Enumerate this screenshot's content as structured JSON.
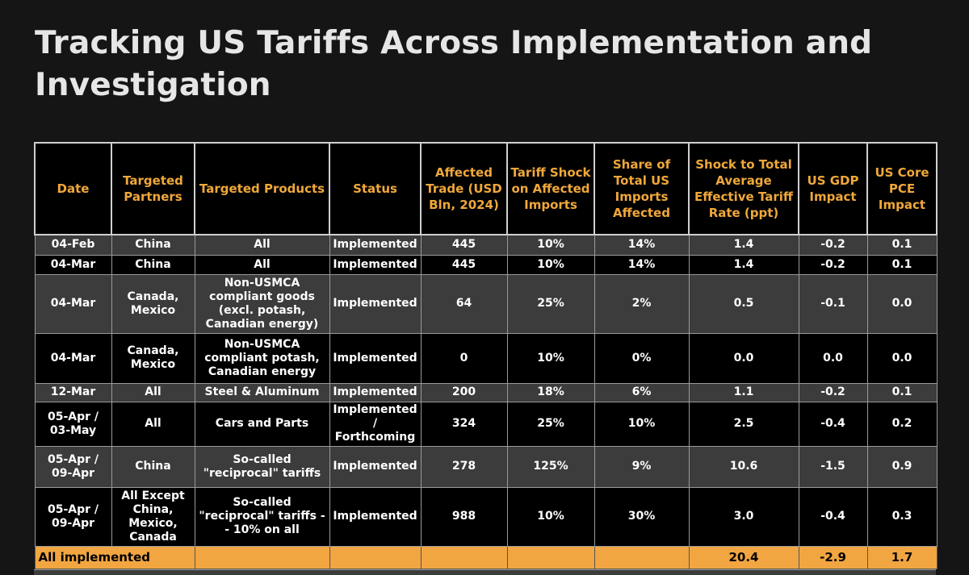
{
  "title": "Tracking US Tariffs Across Implementation and Investigation",
  "colors": {
    "header_text": "#f0a83a",
    "total_bg": "#f1a642",
    "background": "#151515"
  },
  "table": {
    "headers": [
      "Date",
      "Targeted Partners",
      "Targeted Products",
      "Status",
      "Affected Trade (USD Bln, 2024)",
      "Tariff Shock on Affected Imports",
      "Share of Total US Imports Affected",
      "Shock to Total Average Effective Tariff Rate (ppt)",
      "US GDP Impact",
      "US Core PCE Impact"
    ],
    "rows": [
      [
        "04-Feb",
        "China",
        "All",
        "Implemented",
        "445",
        "10%",
        "14%",
        "1.4",
        "-0.2",
        "0.1"
      ],
      [
        "04-Mar",
        "China",
        "All",
        "Implemented",
        "445",
        "10%",
        "14%",
        "1.4",
        "-0.2",
        "0.1"
      ],
      [
        "04-Mar",
        "Canada, Mexico",
        "Non-USMCA compliant goods (excl. potash, Canadian energy)",
        "Implemented",
        "64",
        "25%",
        "2%",
        "0.5",
        "-0.1",
        "0.0"
      ],
      [
        "04-Mar",
        "Canada, Mexico",
        "Non-USMCA compliant potash, Canadian energy",
        "Implemented",
        "0",
        "10%",
        "0%",
        "0.0",
        "0.0",
        "0.0"
      ],
      [
        "12-Mar",
        "All",
        "Steel & Aluminum",
        "Implemented",
        "200",
        "18%",
        "6%",
        "1.1",
        "-0.2",
        "0.1"
      ],
      [
        "05-Apr / 03-May",
        "All",
        "Cars and Parts",
        "Implemented / Forthcoming",
        "324",
        "25%",
        "10%",
        "2.5",
        "-0.4",
        "0.2"
      ],
      [
        "05-Apr / 09-Apr",
        "China",
        "So-called \"reciprocal\" tariffs",
        "Implemented",
        "278",
        "125%",
        "9%",
        "10.6",
        "-1.5",
        "0.9"
      ],
      [
        "05-Apr / 09-Apr",
        "All Except China, Mexico, Canada",
        "So-called \"reciprocal\" tariffs - - 10% on all",
        "Implemented",
        "988",
        "10%",
        "30%",
        "3.0",
        "-0.4",
        "0.3"
      ]
    ],
    "total": {
      "label": "All implemented",
      "shock_total": "20.4",
      "gdp": "-2.9",
      "pce": "1.7"
    }
  }
}
